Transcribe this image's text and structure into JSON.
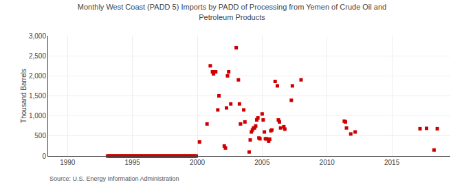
{
  "chart_data": {
    "type": "scatter",
    "title": "Monthly West Coast (PADD 5) Imports by PADD of Processing from Yemen of Crude Oil and\nPetroleum Products",
    "ylabel": "Thousand Barrels",
    "annotations": [
      "Source: U.S. Energy Information Administration"
    ],
    "color": "#cc0000",
    "marker": "square",
    "grid": true,
    "xlim": [
      1988.5,
      2019.5
    ],
    "xticks": [
      1990,
      1995,
      2000,
      2005,
      2010,
      2015
    ],
    "ylim": [
      0,
      3000
    ],
    "yticks": [
      0,
      500,
      {
        "value": 1000,
        "label": "1,000"
      },
      {
        "value": 1500,
        "label": "1,500"
      },
      {
        "value": 2000,
        "label": "2,000"
      },
      {
        "value": 2500,
        "label": "2,500"
      },
      {
        "value": 3000,
        "label": "3,000"
      }
    ],
    "x": [
      1993.08,
      1993.17,
      1993.25,
      1993.33,
      1993.42,
      1993.5,
      1993.58,
      1993.67,
      1993.75,
      1993.83,
      1993.92,
      1994.0,
      1994.08,
      1994.17,
      1994.25,
      1994.33,
      1994.42,
      1994.5,
      1994.58,
      1994.67,
      1994.75,
      1994.83,
      1994.92,
      1995.0,
      1995.08,
      1995.17,
      1995.25,
      1995.33,
      1995.42,
      1995.5,
      1995.58,
      1995.67,
      1995.75,
      1995.83,
      1995.92,
      1996.0,
      1996.08,
      1996.17,
      1996.25,
      1996.33,
      1996.42,
      1996.5,
      1996.58,
      1996.67,
      1996.75,
      1996.83,
      1996.92,
      1997.0,
      1997.08,
      1997.17,
      1997.25,
      1997.33,
      1997.42,
      1997.5,
      1997.58,
      1997.67,
      1997.75,
      1997.83,
      1997.92,
      1998.0,
      1998.08,
      1998.17,
      1998.25,
      1998.33,
      1998.42,
      1998.5,
      1998.58,
      1998.67,
      1998.75,
      1998.83,
      1998.92,
      1999.0,
      1999.08,
      1999.17,
      1999.25,
      1999.33,
      1999.42,
      1999.5,
      1999.58,
      1999.67,
      1999.75,
      1999.83,
      1999.92,
      2000.17,
      2000.75,
      2001.0,
      2001.17,
      2001.25,
      2001.33,
      2001.42,
      2001.58,
      2001.67,
      2002.08,
      2002.17,
      2002.25,
      2002.33,
      2002.42,
      2002.58,
      2003.0,
      2003.17,
      2003.25,
      2003.33,
      2003.58,
      2003.67,
      2004.0,
      2004.08,
      2004.17,
      2004.25,
      2004.33,
      2004.42,
      2004.5,
      2004.58,
      2004.67,
      2004.75,
      2004.83,
      2005.0,
      2005.08,
      2005.17,
      2005.25,
      2005.33,
      2005.5,
      2005.58,
      2005.67,
      2005.75,
      2006.0,
      2006.17,
      2006.25,
      2006.33,
      2006.42,
      2006.67,
      2006.75,
      2007.25,
      2007.33,
      2008.0,
      2011.33,
      2011.42,
      2011.5,
      2011.83,
      2012.17,
      2017.17,
      2017.67,
      2018.25,
      2018.5
    ],
    "values": [
      0,
      0,
      0,
      0,
      0,
      0,
      0,
      0,
      0,
      0,
      0,
      0,
      0,
      0,
      0,
      0,
      0,
      0,
      0,
      0,
      0,
      0,
      0,
      0,
      0,
      0,
      0,
      0,
      0,
      0,
      0,
      0,
      0,
      0,
      0,
      0,
      0,
      0,
      0,
      0,
      0,
      0,
      0,
      0,
      0,
      0,
      0,
      0,
      0,
      0,
      0,
      0,
      0,
      0,
      0,
      0,
      0,
      0,
      0,
      0,
      0,
      0,
      0,
      0,
      0,
      0,
      0,
      0,
      0,
      0,
      0,
      0,
      0,
      0,
      0,
      0,
      0,
      0,
      0,
      0,
      0,
      0,
      0,
      350,
      800,
      2250,
      2100,
      2050,
      2100,
      2100,
      1150,
      1500,
      250,
      200,
      1200,
      2000,
      2100,
      1300,
      2700,
      1900,
      1300,
      800,
      1150,
      850,
      100,
      400,
      600,
      650,
      700,
      700,
      750,
      900,
      950,
      450,
      430,
      1050,
      900,
      600,
      430,
      430,
      370,
      420,
      630,
      650,
      1860,
      1750,
      900,
      850,
      700,
      730,
      670,
      1390,
      1750,
      1900,
      870,
      850,
      700,
      550,
      600,
      680,
      690,
      150,
      680
    ]
  }
}
